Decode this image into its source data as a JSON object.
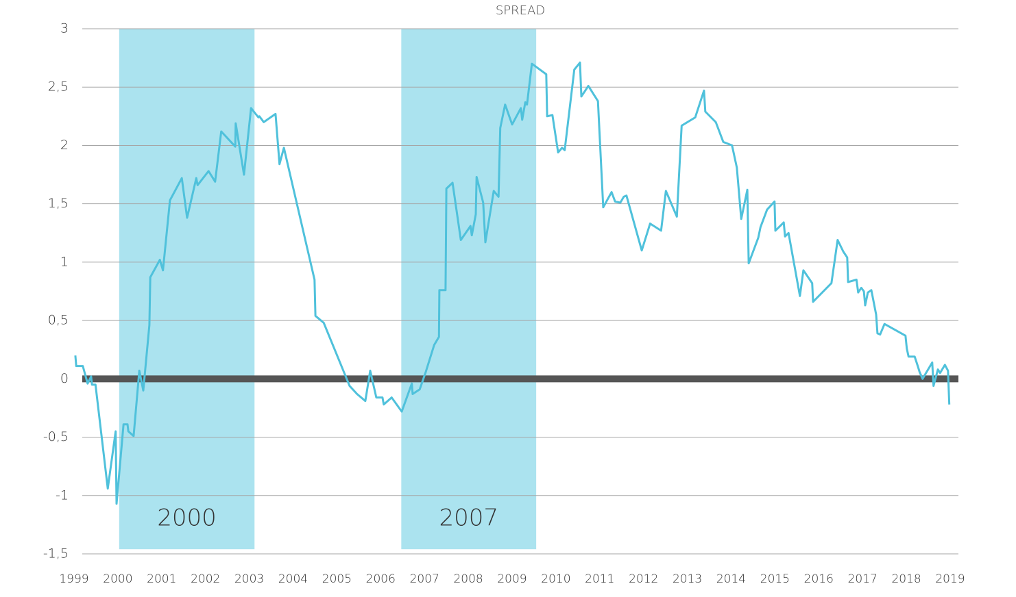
{
  "chart_data": {
    "type": "line",
    "title": "SPREAD",
    "color": "#4fc1db",
    "band_color": "#abe3ef",
    "baseline_color": "#555555",
    "grid": true,
    "xlim": [
      1999,
      2019
    ],
    "xticks": [
      1999,
      2000,
      2001,
      2002,
      2003,
      2004,
      2005,
      2006,
      2007,
      2008,
      2009,
      2010,
      2011,
      2012,
      2013,
      2014,
      2015,
      2016,
      2017,
      2018,
      2019
    ],
    "ylim": [
      -1.5,
      3
    ],
    "yticks": [
      {
        "value": -1.5,
        "label": "-1,5"
      },
      -1,
      {
        "value": -0.5,
        "label": "-0,5"
      },
      0,
      {
        "value": 0.5,
        "label": "0,5"
      },
      1,
      {
        "value": 1.5,
        "label": "1,5"
      },
      2,
      {
        "value": 2.5,
        "label": "2,5"
      },
      3
    ],
    "shaded": [
      {
        "label": "2000",
        "x0": 2000.03,
        "x1": 2003.12,
        "y0": -1.46,
        "y1": 3,
        "label_y": -1.2
      },
      {
        "label": "2007",
        "x0": 2006.47,
        "x1": 2009.55,
        "y0": -1.46,
        "y1": 3,
        "label_y": -1.2
      }
    ],
    "x": [
      1999.03,
      1999.05,
      1999.2,
      1999.31,
      1999.39,
      1999.41,
      1999.49,
      1999.77,
      1999.95,
      1999.97,
      2000.13,
      2000.22,
      2000.24,
      2000.36,
      2000.49,
      2000.58,
      2000.72,
      2000.74,
      2000.96,
      2001.03,
      2001.19,
      2001.46,
      2001.58,
      2001.79,
      2001.82,
      2002.07,
      2002.22,
      2002.36,
      2002.68,
      2002.69,
      2002.88,
      2003.04,
      2003.21,
      2003.23,
      2003.33,
      2003.6,
      2003.69,
      2003.79,
      2004.49,
      2004.51,
      2004.7,
      2005.29,
      2005.46,
      2005.65,
      2005.76,
      2005.9,
      2006.04,
      2006.07,
      2006.25,
      2006.48,
      2006.71,
      2006.73,
      2006.89,
      2007.03,
      2007.22,
      2007.33,
      2007.34,
      2007.48,
      2007.5,
      2007.64,
      2007.83,
      2008.05,
      2008.08,
      2008.17,
      2008.19,
      2008.34,
      2008.39,
      2008.58,
      2008.69,
      2008.73,
      2008.84,
      2009.0,
      2009.2,
      2009.23,
      2009.3,
      2009.34,
      2009.45,
      2009.78,
      2009.8,
      2009.92,
      2010.05,
      2010.14,
      2010.2,
      2010.42,
      2010.55,
      2010.58,
      2010.74,
      2010.96,
      2011.08,
      2011.27,
      2011.35,
      2011.47,
      2011.55,
      2011.61,
      2011.96,
      2012.15,
      2012.4,
      2012.51,
      2012.76,
      2012.87,
      2012.96,
      2013.18,
      2013.38,
      2013.41,
      2013.65,
      2013.82,
      2014.02,
      2014.13,
      2014.23,
      2014.37,
      2014.4,
      2014.62,
      2014.67,
      2014.82,
      2014.99,
      2015.01,
      2015.2,
      2015.23,
      2015.31,
      2015.57,
      2015.65,
      2015.85,
      2015.87,
      2016.29,
      2016.43,
      2016.56,
      2016.65,
      2016.67,
      2016.86,
      2016.9,
      2016.97,
      2017.03,
      2017.06,
      2017.12,
      2017.2,
      2017.31,
      2017.34,
      2017.4,
      2017.5,
      2017.98,
      2018.01,
      2018.05,
      2018.19,
      2018.26,
      2018.3,
      2018.37,
      2018.59,
      2018.62,
      2018.72,
      2018.77,
      2018.88,
      2018.95,
      2018.98
    ],
    "values": [
      0.2,
      0.11,
      0.11,
      -0.04,
      0.02,
      -0.05,
      -0.05,
      -0.94,
      -0.45,
      -1.07,
      -0.39,
      -0.39,
      -0.45,
      -0.49,
      0.07,
      -0.1,
      0.46,
      0.87,
      1.02,
      0.93,
      1.53,
      1.72,
      1.38,
      1.72,
      1.66,
      1.78,
      1.69,
      2.12,
      1.99,
      2.19,
      1.75,
      2.32,
      2.24,
      2.25,
      2.2,
      2.27,
      1.84,
      1.98,
      0.85,
      0.54,
      0.48,
      -0.06,
      -0.13,
      -0.19,
      0.07,
      -0.16,
      -0.16,
      -0.22,
      -0.16,
      -0.28,
      -0.04,
      -0.13,
      -0.09,
      0.06,
      0.29,
      0.36,
      0.76,
      0.76,
      1.63,
      1.68,
      1.19,
      1.31,
      1.23,
      1.41,
      1.73,
      1.51,
      1.17,
      1.61,
      1.56,
      2.15,
      2.35,
      2.18,
      2.32,
      2.22,
      2.37,
      2.35,
      2.7,
      2.61,
      2.25,
      2.26,
      1.94,
      1.98,
      1.96,
      2.65,
      2.71,
      2.42,
      2.51,
      2.38,
      1.47,
      1.6,
      1.52,
      1.51,
      1.56,
      1.57,
      1.1,
      1.33,
      1.27,
      1.61,
      1.39,
      2.17,
      2.19,
      2.24,
      2.47,
      2.29,
      2.2,
      2.03,
      2.0,
      1.81,
      1.37,
      1.62,
      0.99,
      1.21,
      1.3,
      1.45,
      1.52,
      1.27,
      1.34,
      1.22,
      1.25,
      0.71,
      0.93,
      0.82,
      0.66,
      0.82,
      1.19,
      1.09,
      1.04,
      0.83,
      0.85,
      0.74,
      0.78,
      0.75,
      0.63,
      0.74,
      0.76,
      0.55,
      0.39,
      0.38,
      0.47,
      0.37,
      0.26,
      0.19,
      0.19,
      0.11,
      0.06,
      0.0,
      0.14,
      -0.06,
      0.08,
      0.05,
      0.12,
      0.07,
      -0.22
    ]
  }
}
